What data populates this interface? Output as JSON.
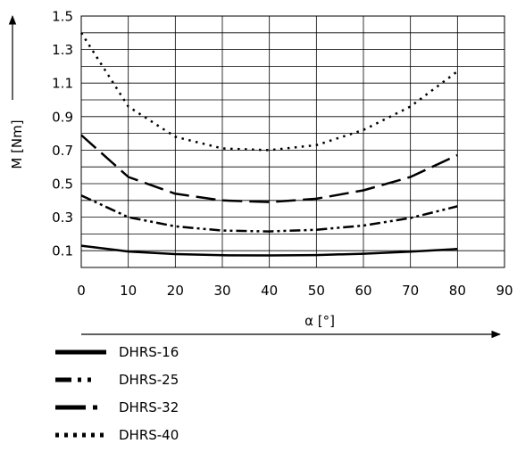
{
  "chart_data": {
    "type": "line",
    "xlabel": "α [°]",
    "ylabel": "M [Nm]",
    "xlim": [
      0,
      90
    ],
    "ylim": [
      0,
      1.5
    ],
    "xticks": [
      "0",
      "10",
      "20",
      "30",
      "40",
      "50",
      "60",
      "70",
      "80",
      "90"
    ],
    "yticks": [
      "0.1",
      "0.3",
      "0.5",
      "0.7",
      "0.9",
      "1.1",
      "1.3",
      "1.5"
    ],
    "grid": true,
    "legend_position": "bottom-left",
    "series": [
      {
        "name": "DHRS-16",
        "legend_style": "solid",
        "line_style": "solid",
        "x": [
          0,
          10,
          20,
          30,
          40,
          50,
          60,
          70,
          80
        ],
        "y": [
          0.13,
          0.095,
          0.08,
          0.073,
          0.072,
          0.074,
          0.082,
          0.094,
          0.11
        ]
      },
      {
        "name": "DHRS-25",
        "legend_style": "dash-dot-dot",
        "line_style": "long-dash",
        "x": [
          0,
          10,
          20,
          30,
          40,
          50,
          60,
          70,
          80
        ],
        "y": [
          0.79,
          0.54,
          0.44,
          0.4,
          0.39,
          0.41,
          0.46,
          0.54,
          0.67
        ]
      },
      {
        "name": "DHRS-32",
        "legend_style": "dash-dot",
        "line_style": "dash-dot-dot",
        "x": [
          0,
          10,
          20,
          30,
          40,
          50,
          60,
          70,
          80
        ],
        "y": [
          0.43,
          0.3,
          0.245,
          0.22,
          0.215,
          0.225,
          0.25,
          0.295,
          0.365
        ]
      },
      {
        "name": "DHRS-40",
        "legend_style": "dotted",
        "line_style": "dotted",
        "x": [
          0,
          10,
          20,
          30,
          40,
          50,
          60,
          70,
          80
        ],
        "y": [
          1.4,
          0.96,
          0.78,
          0.71,
          0.7,
          0.73,
          0.82,
          0.96,
          1.17
        ]
      }
    ]
  }
}
